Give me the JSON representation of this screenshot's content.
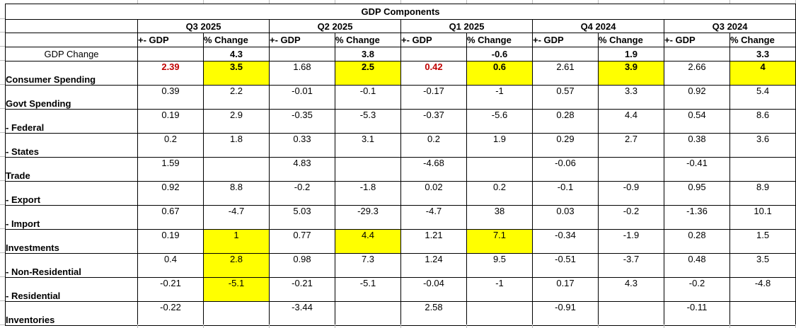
{
  "colors": {
    "highlight": "#ffff00",
    "negative_text": "#c00000"
  },
  "table": {
    "title": "GDP Components",
    "quarters": [
      "Q3 2025",
      "Q2 2025",
      "Q1 2025",
      "Q4 2024",
      "Q3 2024"
    ],
    "sub_headers": {
      "gdp": "+- GDP",
      "pct": "% Change"
    },
    "summary_row": {
      "label": "GDP Change",
      "pct_values": [
        "4.3",
        "3.8",
        "-0.6",
        "1.9",
        "3.3"
      ]
    },
    "rows": [
      {
        "label": "Consumer Spending",
        "cells": [
          {
            "v": "2.39",
            "r": true
          },
          {
            "v": "3.5",
            "y": true,
            "b": true
          },
          {
            "v": "1.68"
          },
          {
            "v": "2.5",
            "y": true,
            "b": true
          },
          {
            "v": "0.42",
            "r": true
          },
          {
            "v": "0.6",
            "y": true,
            "b": true
          },
          {
            "v": "2.61"
          },
          {
            "v": "3.9",
            "y": true,
            "b": true
          },
          {
            "v": "2.66"
          },
          {
            "v": "4",
            "y": true,
            "b": true
          }
        ]
      },
      {
        "label": "Govt Spending",
        "cells": [
          {
            "v": "0.39"
          },
          {
            "v": "2.2"
          },
          {
            "v": "-0.01"
          },
          {
            "v": "-0.1"
          },
          {
            "v": "-0.17"
          },
          {
            "v": "-1"
          },
          {
            "v": "0.57"
          },
          {
            "v": "3.3"
          },
          {
            "v": "0.92"
          },
          {
            "v": "5.4"
          }
        ]
      },
      {
        "label": "- Federal",
        "cells": [
          {
            "v": "0.19"
          },
          {
            "v": "2.9"
          },
          {
            "v": "-0.35"
          },
          {
            "v": "-5.3"
          },
          {
            "v": "-0.37"
          },
          {
            "v": "-5.6"
          },
          {
            "v": "0.28"
          },
          {
            "v": "4.4"
          },
          {
            "v": "0.54"
          },
          {
            "v": "8.6"
          }
        ]
      },
      {
        "label": "- States",
        "cells": [
          {
            "v": "0.2"
          },
          {
            "v": "1.8"
          },
          {
            "v": "0.33"
          },
          {
            "v": "3.1"
          },
          {
            "v": "0.2"
          },
          {
            "v": "1.9"
          },
          {
            "v": "0.29"
          },
          {
            "v": "2.7"
          },
          {
            "v": "0.38"
          },
          {
            "v": "3.6"
          }
        ]
      },
      {
        "label": "Trade",
        "cells": [
          {
            "v": "1.59"
          },
          {
            "v": ""
          },
          {
            "v": "4.83"
          },
          {
            "v": ""
          },
          {
            "v": "-4.68"
          },
          {
            "v": ""
          },
          {
            "v": "-0.06"
          },
          {
            "v": ""
          },
          {
            "v": "-0.41"
          },
          {
            "v": ""
          }
        ]
      },
      {
        "label": "- Export",
        "cells": [
          {
            "v": "0.92"
          },
          {
            "v": "8.8"
          },
          {
            "v": "-0.2"
          },
          {
            "v": "-1.8"
          },
          {
            "v": "0.02"
          },
          {
            "v": "0.2"
          },
          {
            "v": "-0.1"
          },
          {
            "v": "-0.9"
          },
          {
            "v": "0.95"
          },
          {
            "v": "8.9"
          }
        ]
      },
      {
        "label": "- Import",
        "cells": [
          {
            "v": "0.67"
          },
          {
            "v": "-4.7"
          },
          {
            "v": "5.03"
          },
          {
            "v": "-29.3"
          },
          {
            "v": "-4.7"
          },
          {
            "v": "38"
          },
          {
            "v": "0.03"
          },
          {
            "v": "-0.2"
          },
          {
            "v": "-1.36"
          },
          {
            "v": "10.1"
          }
        ]
      },
      {
        "label": "Investments",
        "cells": [
          {
            "v": "0.19"
          },
          {
            "v": "1",
            "y": true
          },
          {
            "v": "0.77"
          },
          {
            "v": "4.4",
            "y": true
          },
          {
            "v": "1.21"
          },
          {
            "v": "7.1",
            "y": true
          },
          {
            "v": "-0.34"
          },
          {
            "v": "-1.9"
          },
          {
            "v": "0.28"
          },
          {
            "v": "1.5"
          }
        ]
      },
      {
        "label": "- Non-Residential",
        "cells": [
          {
            "v": "0.4"
          },
          {
            "v": "2.8",
            "y": true
          },
          {
            "v": "0.98"
          },
          {
            "v": "7.3"
          },
          {
            "v": "1.24"
          },
          {
            "v": "9.5"
          },
          {
            "v": "-0.51"
          },
          {
            "v": "-3.7"
          },
          {
            "v": "0.48"
          },
          {
            "v": "3.5"
          }
        ]
      },
      {
        "label": "- Residential",
        "cells": [
          {
            "v": "-0.21"
          },
          {
            "v": "-5.1",
            "y": true
          },
          {
            "v": "-0.21"
          },
          {
            "v": "-5.1"
          },
          {
            "v": "-0.04"
          },
          {
            "v": "-1"
          },
          {
            "v": "0.17"
          },
          {
            "v": "4.3"
          },
          {
            "v": "-0.2"
          },
          {
            "v": "-4.8"
          }
        ]
      },
      {
        "label": "Inventories",
        "cells": [
          {
            "v": "-0.22"
          },
          {
            "v": ""
          },
          {
            "v": "-3.44"
          },
          {
            "v": ""
          },
          {
            "v": "2.58"
          },
          {
            "v": ""
          },
          {
            "v": "-0.91"
          },
          {
            "v": ""
          },
          {
            "v": "-0.11"
          },
          {
            "v": ""
          }
        ]
      }
    ]
  }
}
